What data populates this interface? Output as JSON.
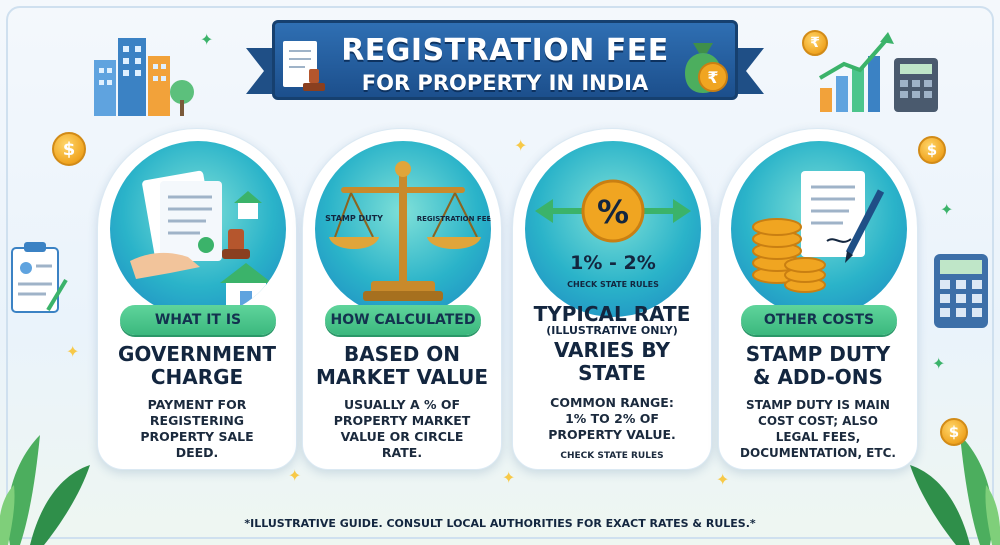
{
  "banner": {
    "line1": "REGISTRATION FEE",
    "line2": "FOR PROPERTY IN INDIA"
  },
  "cards": [
    {
      "label": "WHAT IT IS",
      "title_line1": "GOVERNMENT",
      "title_line2": "CHARGE",
      "body_lines": [
        "PAYMENT FOR",
        "REGISTERING",
        "PROPERTY SALE",
        "DEED."
      ],
      "icon": "document-hand-house-icon"
    },
    {
      "label": "HOW CALCULATED",
      "title_line1": "BASED ON",
      "title_line2": "MARKET VALUE",
      "body_lines": [
        "USUALLY A % OF",
        "PROPERTY MARKET",
        "VALUE OR CIRCLE",
        "RATE."
      ],
      "scale_left": "STAMP DUTY",
      "scale_right": "REGISTRATION FEE",
      "icon": "balance-scale-icon"
    },
    {
      "label": "",
      "title_line1": "TYPICAL RATE",
      "subtitle": "(ILLUSTRATIVE ONLY)",
      "title_line2": "VARIES BY",
      "title_line3": "STATE",
      "body_lines": [
        "COMMON RANGE:",
        "1% TO 2% OF",
        "PROPERTY VALUE."
      ],
      "note": "CHECK STATE RULES",
      "illus_range": "1% - 2%",
      "illus_note": "CHECK STATE RULES",
      "illus_symbol": "%",
      "icon": "percent-arrows-icon"
    },
    {
      "label": "OTHER COSTS",
      "title_line1": "STAMP DUTY",
      "title_line2": "& ADD-ONS",
      "body_lines": [
        "STAMP DUTY IS MAIN",
        "COST COST; ALSO",
        "LEGAL FEES,",
        "DOCUMENTATION, ETC."
      ],
      "icon": "coins-document-pen-icon"
    }
  ],
  "footer": "*ILLUSTRATIVE GUIDE. CONSULT LOCAL AUTHORITIES FOR EXACT RATES & RULES.*",
  "coin_symbol": "$",
  "rupee_symbol": "₹",
  "colors": {
    "banner": "#2f6fb3",
    "pill": "#4cc58c",
    "illustration": "#2ab3c9",
    "coin": "#f0a521"
  }
}
